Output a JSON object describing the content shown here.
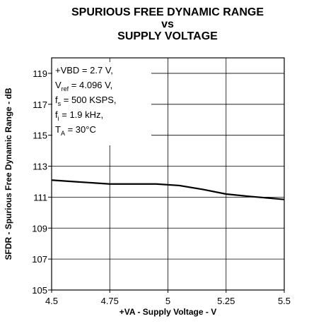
{
  "chart_data": {
    "type": "line",
    "title": [
      "SPURIOUS FREE DYNAMIC RANGE",
      "vs",
      "SUPPLY VOLTAGE"
    ],
    "x_label": "+VA - Supply Voltage - V",
    "y_label": "SFDR - Spurious Free Dynamic Range - dB",
    "annotation": [
      [
        "+VBD = 2.7 V,"
      ],
      [
        "V",
        "ref",
        " = 4.096 V,"
      ],
      [
        "f",
        "s",
        " = 500 KSPS,"
      ],
      [
        "f",
        "i",
        " = 1.9 kHz,"
      ],
      [
        "T",
        "A",
        " = 30°C"
      ]
    ],
    "x": [
      4.5,
      4.6,
      4.75,
      4.95,
      5.05,
      5.15,
      5.25,
      5.35,
      5.5
    ],
    "series": [
      {
        "color": "#000000",
        "values": [
          112.1,
          112.0,
          111.85,
          111.85,
          111.75,
          111.5,
          111.2,
          111.05,
          110.85
        ]
      }
    ],
    "xlim": [
      4.5,
      5.5
    ],
    "xticks": [
      4.5,
      4.75,
      5,
      5.25,
      5.5
    ],
    "ylim": [
      105,
      120
    ],
    "yticks": [
      105,
      107,
      109,
      111,
      113,
      115,
      117,
      119
    ],
    "grid": true
  }
}
